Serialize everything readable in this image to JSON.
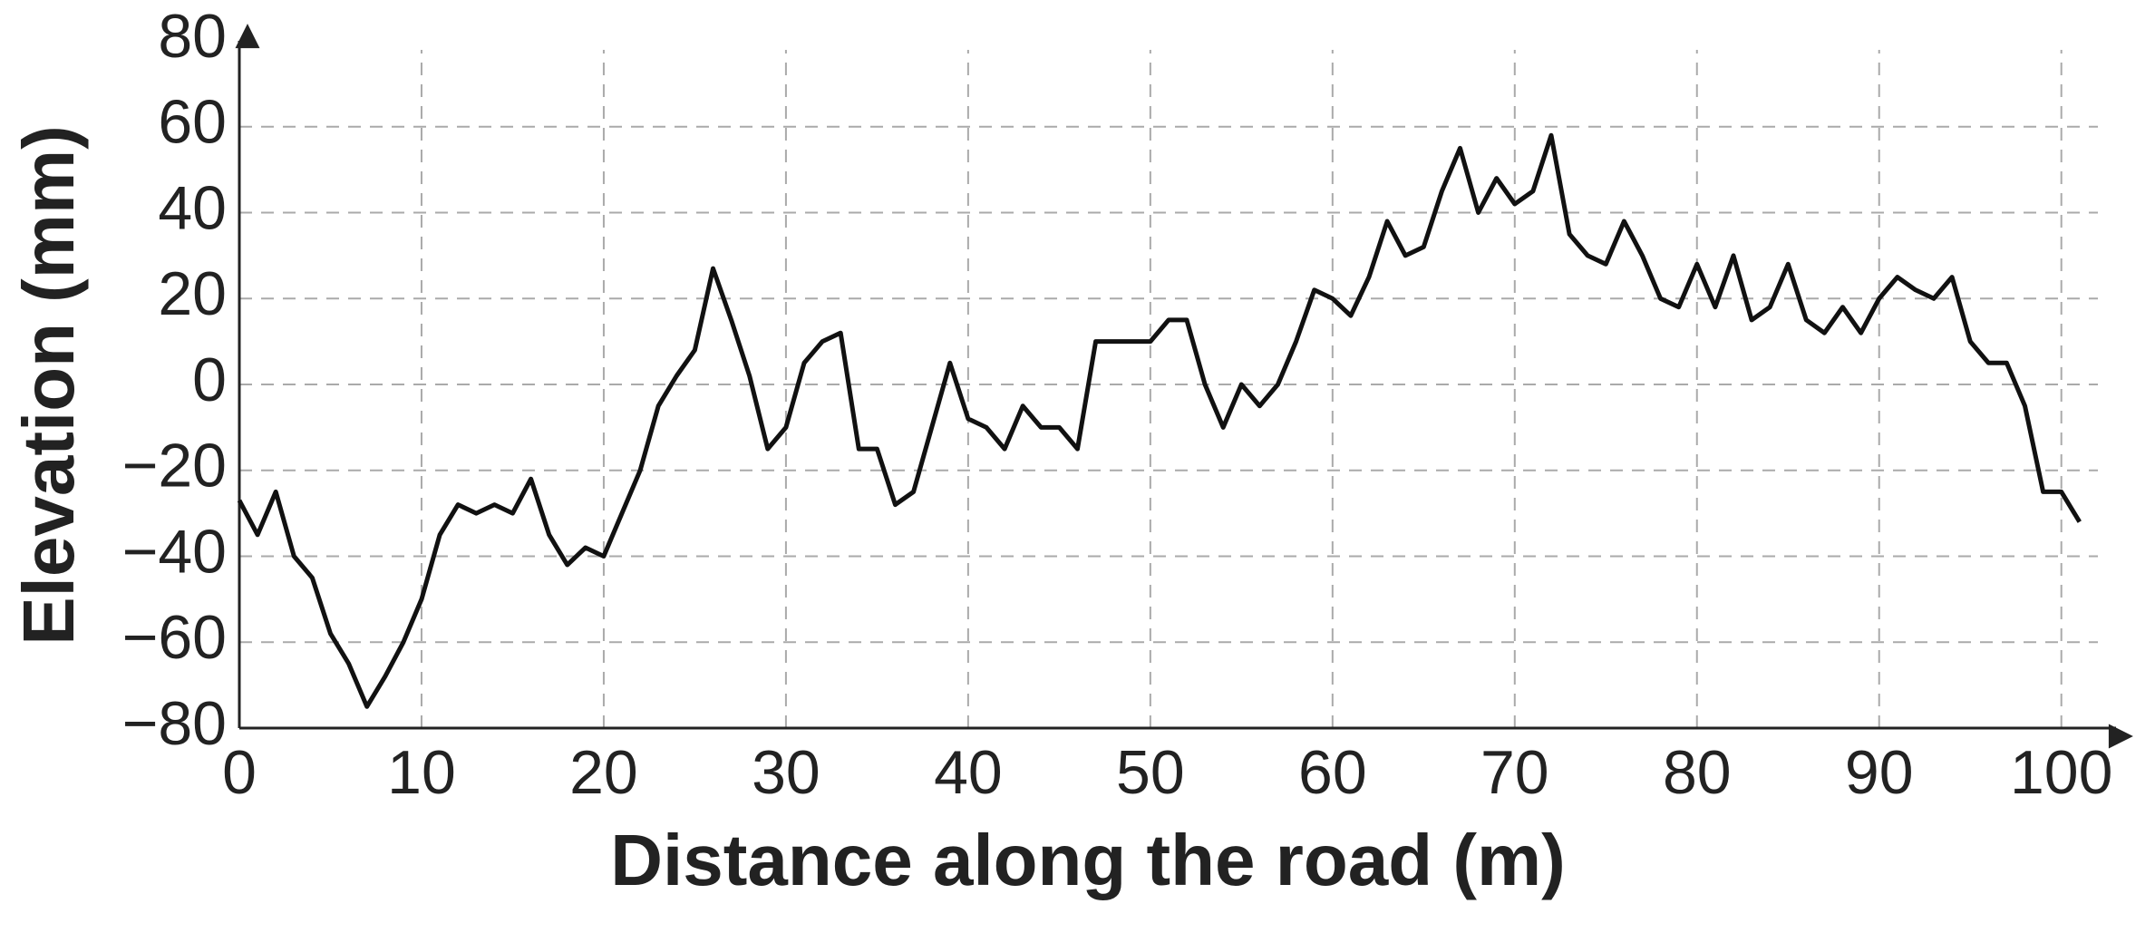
{
  "chart_data": {
    "type": "line",
    "x_label": "Distance along the road (m)",
    "y_label": "Elevation (mm)",
    "x": [
      0,
      1,
      2,
      3,
      4,
      5,
      6,
      7,
      8,
      9,
      10,
      11,
      12,
      13,
      14,
      15,
      16,
      17,
      18,
      19,
      20,
      21,
      22,
      23,
      24,
      25,
      26,
      27,
      28,
      29,
      30,
      31,
      32,
      33,
      34,
      35,
      36,
      37,
      38,
      39,
      40,
      41,
      42,
      43,
      44,
      45,
      46,
      47,
      48,
      49,
      50,
      51,
      52,
      53,
      54,
      55,
      56,
      57,
      58,
      59,
      60,
      61,
      62,
      63,
      64,
      65,
      66,
      67,
      68,
      69,
      70,
      71,
      72,
      73,
      74,
      75,
      76,
      77,
      78,
      79,
      80,
      81,
      82,
      83,
      84,
      85,
      86,
      87,
      88,
      89,
      90,
      91,
      92,
      93,
      94,
      95,
      96,
      97,
      98,
      99,
      100,
      101
    ],
    "series": [
      {
        "name": "Elevation",
        "color": "#111111",
        "values": [
          -27,
          -35,
          -25,
          -40,
          -45,
          -58,
          -65,
          -75,
          -68,
          -60,
          -50,
          -35,
          -28,
          -30,
          -28,
          -30,
          -22,
          -35,
          -42,
          -38,
          -40,
          -30,
          -20,
          -5,
          2,
          8,
          27,
          15,
          2,
          -15,
          -10,
          5,
          10,
          12,
          -15,
          -15,
          -28,
          -25,
          -10,
          5,
          -8,
          -10,
          -15,
          -5,
          -10,
          -10,
          -15,
          10,
          10,
          10,
          10,
          15,
          15,
          0,
          -10,
          0,
          -5,
          0,
          10,
          22,
          20,
          16,
          25,
          38,
          30,
          32,
          45,
          55,
          40,
          48,
          42,
          45,
          58,
          35,
          30,
          28,
          38,
          30,
          20,
          18,
          28,
          18,
          30,
          15,
          18,
          28,
          15,
          12,
          18,
          12,
          20,
          25,
          22,
          20,
          25,
          10,
          5,
          5,
          -5,
          -25,
          -25,
          -32
        ]
      }
    ],
    "xlim": [
      0,
      103
    ],
    "ylim": [
      -80,
      80
    ],
    "xticks": [
      0,
      10,
      20,
      30,
      40,
      50,
      60,
      70,
      80,
      90,
      100
    ],
    "yticks": [
      {
        "value": -80,
        "label": "−80"
      },
      {
        "value": -60,
        "label": "−60"
      },
      {
        "value": -40,
        "label": "−40"
      },
      {
        "value": -20,
        "label": "−20"
      },
      0,
      20,
      40,
      60,
      80
    ],
    "grid": true
  }
}
